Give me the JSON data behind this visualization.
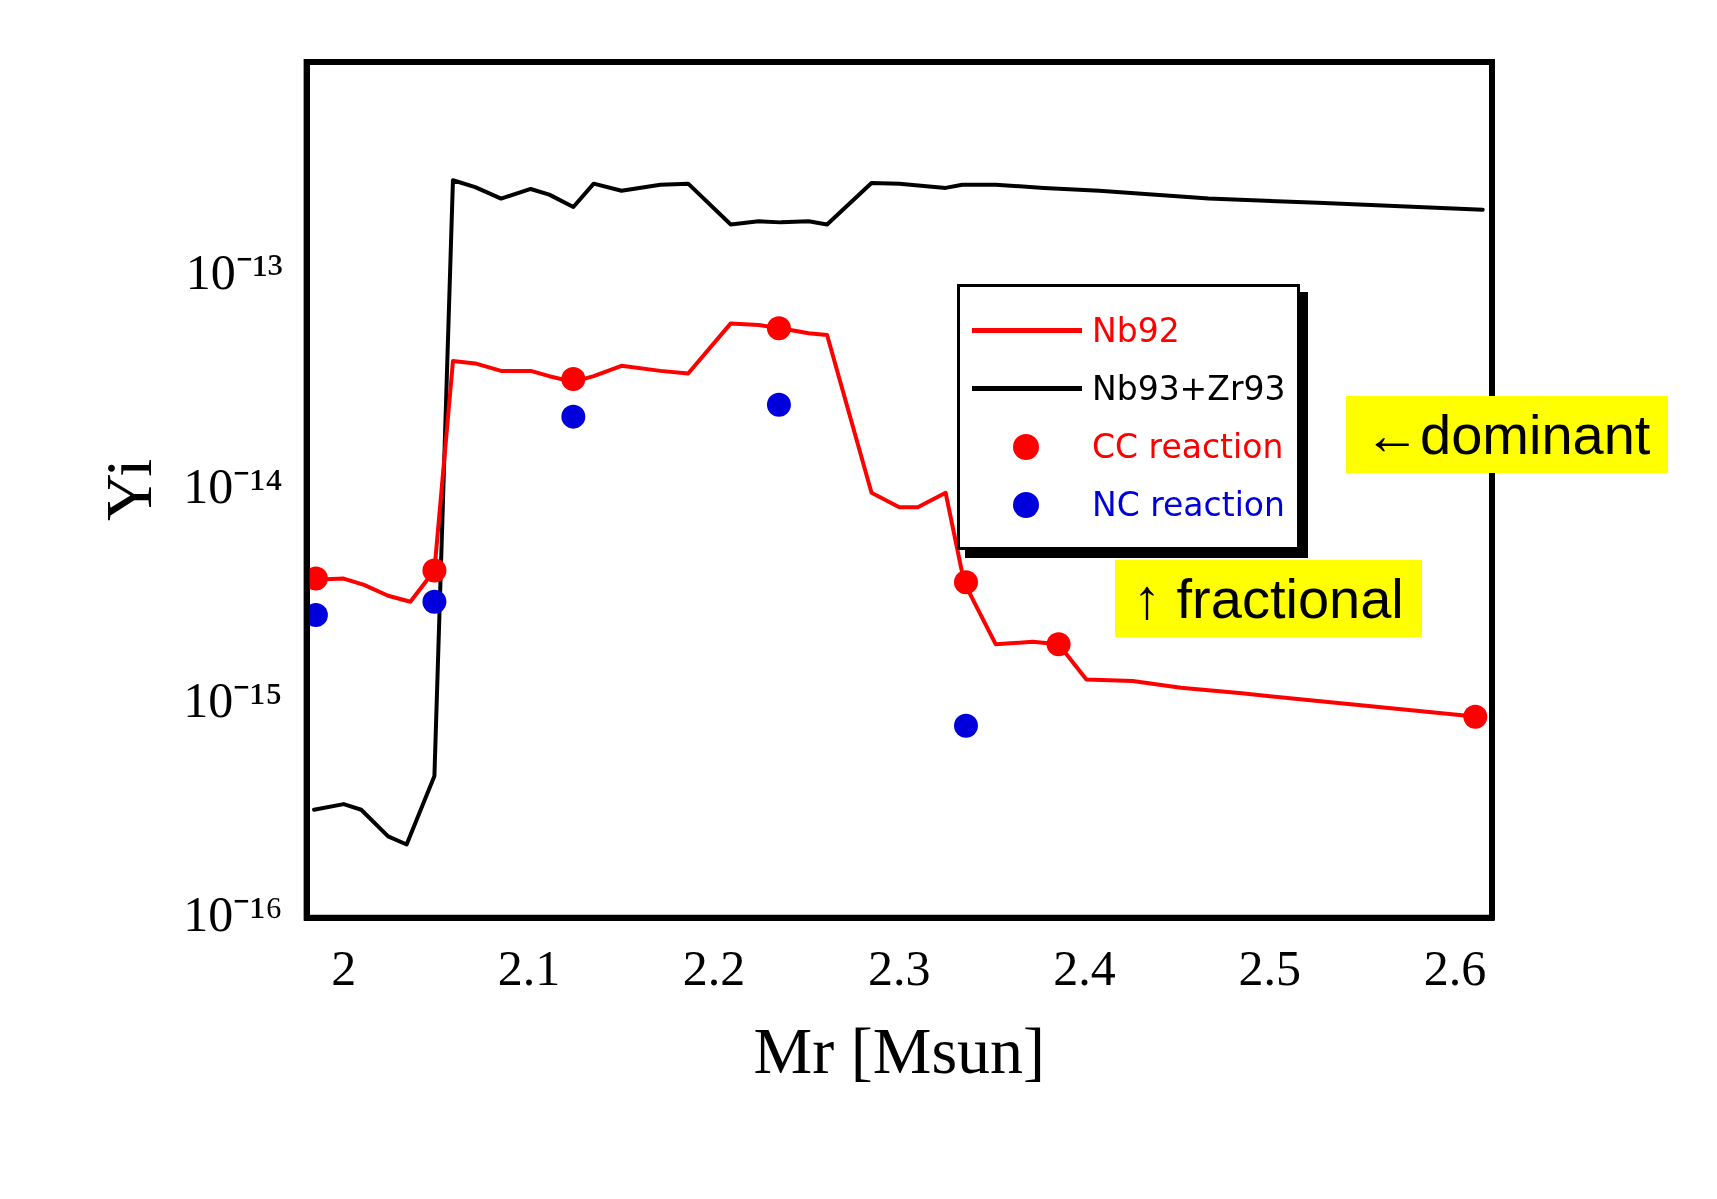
{
  "chart_data": {
    "type": "line",
    "xlabel": "Mr [Msun]",
    "ylabel": "Yi",
    "log": "y",
    "grid": false,
    "legend": "right",
    "xlim": [
      1.98,
      2.62
    ],
    "xticks": [
      2,
      2.1,
      2.2,
      2.3,
      2.4,
      2.5,
      2.6
    ],
    "ylim": [
      1e-16,
      1e-12
    ],
    "yticks": [
      {
        "value": 1e-16,
        "label": "10⁻¹⁶"
      },
      {
        "value": 1e-15,
        "label": "10⁻¹⁵"
      },
      {
        "value": 1e-14,
        "label": "10⁻¹⁴"
      },
      {
        "value": 1e-13,
        "label": "10⁻¹³"
      }
    ],
    "series": [
      {
        "name": "Nb92",
        "color": "#ff0000",
        "x": [
          1.984,
          2.0,
          2.011,
          2.024,
          2.036,
          2.049,
          2.059,
          2.071,
          2.085,
          2.101,
          2.111,
          2.124,
          2.135,
          2.15,
          2.171,
          2.186,
          2.209,
          2.224,
          2.236,
          2.251,
          2.261,
          2.285,
          2.3,
          2.31,
          2.325,
          2.335,
          2.352,
          2.372,
          2.386,
          2.401,
          2.426,
          2.452,
          2.485,
          2.526,
          2.612
        ],
        "values": [
          3.8e-15,
          3.85e-15,
          3.6e-15,
          3.2e-15,
          3e-15,
          4.2e-15,
          4e-14,
          3.9e-14,
          3.6e-14,
          3.6e-14,
          3.4e-14,
          3.2e-14,
          3.4e-14,
          3.8e-14,
          3.6e-14,
          3.5e-14,
          6e-14,
          5.9e-14,
          5.7e-14,
          5.4e-14,
          5.3e-14,
          9.7e-15,
          8.3e-15,
          8.3e-15,
          9.7e-15,
          3.7e-15,
          1.9e-15,
          1.95e-15,
          1.9e-15,
          1.3e-15,
          1.28e-15,
          1.19e-15,
          1.12e-15,
          1.03e-15,
          8.7e-16
        ]
      },
      {
        "name": "Nb93+Zr93",
        "color": "#000000",
        "x": [
          1.984,
          2.0,
          2.0095,
          2.024,
          2.034,
          2.049,
          2.059,
          2.071,
          2.085,
          2.101,
          2.111,
          2.124,
          2.135,
          2.15,
          2.171,
          2.186,
          2.209,
          2.224,
          2.236,
          2.251,
          2.261,
          2.285,
          2.3,
          2.325,
          2.334,
          2.352,
          2.378,
          2.408,
          2.467,
          2.526,
          2.615
        ],
        "values": [
          3.2e-16,
          3.4e-16,
          3.2e-16,
          2.4e-16,
          2.2e-16,
          4.6e-16,
          2.8e-13,
          2.6e-13,
          2.3e-13,
          2.55e-13,
          2.4e-13,
          2.1e-13,
          2.7e-13,
          2.5e-13,
          2.67e-13,
          2.7e-13,
          1.74e-13,
          1.8e-13,
          1.78e-13,
          1.8e-13,
          1.74e-13,
          2.72e-13,
          2.7e-13,
          2.58e-13,
          2.67e-13,
          2.67e-13,
          2.58e-13,
          2.5e-13,
          2.3e-13,
          2.2e-13,
          2.04e-13
        ]
      },
      {
        "name": "CC reaction",
        "type": "scatter",
        "marker": "circle",
        "color": "#ff0000",
        "x": [
          1.985,
          2.049,
          2.124,
          2.235,
          2.336,
          2.386,
          2.611
        ],
        "values": [
          3.85e-15,
          4.2e-15,
          3.3e-14,
          5.7e-14,
          3.7e-15,
          1.9e-15,
          8.7e-16
        ]
      },
      {
        "name": "NC reaction",
        "type": "scatter",
        "marker": "circle",
        "color": "#0000dd",
        "x": [
          1.985,
          2.049,
          2.124,
          2.235,
          2.336
        ],
        "values": [
          2.6e-15,
          3e-15,
          2.2e-14,
          2.5e-14,
          7.9e-16
        ]
      }
    ],
    "annotations": [
      "←dominant",
      "↑ fractional"
    ]
  }
}
